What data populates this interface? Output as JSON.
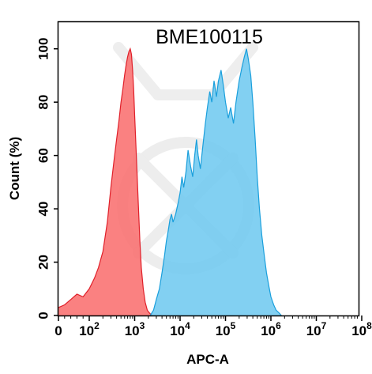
{
  "chart_data": {
    "type": "area",
    "title": "BME100115",
    "xlabel": "APC-A",
    "ylabel": "Count  (%)",
    "xscale": "log",
    "ylim": [
      0,
      110
    ],
    "y_ticks": [
      0,
      20,
      40,
      60,
      80,
      100
    ],
    "x_tick_labels": [
      {
        "value": 0,
        "base": "0",
        "exp": ""
      },
      {
        "value": 100,
        "base": "10",
        "exp": "2"
      },
      {
        "value": 1000,
        "base": "10",
        "exp": "3"
      },
      {
        "value": 10000,
        "base": "10",
        "exp": "4"
      },
      {
        "value": 100000,
        "base": "10",
        "exp": "5"
      },
      {
        "value": 1000000,
        "base": "10",
        "exp": "6"
      },
      {
        "value": 10000000,
        "base": "10",
        "exp": "7"
      },
      {
        "value": 100000000,
        "base": "10",
        "exp": "8"
      }
    ],
    "grid": false,
    "legend": "none",
    "series": [
      {
        "color": "#f96b6b",
        "stroke": "#e0202a",
        "points": [
          [
            0,
            3
          ],
          [
            20,
            4
          ],
          [
            40,
            6
          ],
          [
            60,
            8
          ],
          [
            80,
            7
          ],
          [
            100,
            10
          ],
          [
            130,
            14
          ],
          [
            160,
            18
          ],
          [
            200,
            24
          ],
          [
            250,
            35
          ],
          [
            300,
            48
          ],
          [
            350,
            58
          ],
          [
            400,
            66
          ],
          [
            450,
            73
          ],
          [
            500,
            80
          ],
          [
            550,
            85
          ],
          [
            600,
            90
          ],
          [
            650,
            94
          ],
          [
            700,
            97
          ],
          [
            750,
            99
          ],
          [
            800,
            100
          ],
          [
            850,
            98
          ],
          [
            900,
            92
          ],
          [
            950,
            85
          ],
          [
            1000,
            75
          ],
          [
            1100,
            58
          ],
          [
            1200,
            42
          ],
          [
            1300,
            28
          ],
          [
            1400,
            18
          ],
          [
            1550,
            10
          ],
          [
            1700,
            5
          ],
          [
            1900,
            2
          ],
          [
            2100,
            1
          ],
          [
            2400,
            0
          ]
        ]
      },
      {
        "color": "#6cc8f0",
        "stroke": "#1a9fdc",
        "points": [
          [
            2200,
            0
          ],
          [
            2600,
            2
          ],
          [
            3000,
            6
          ],
          [
            3500,
            10
          ],
          [
            4000,
            16
          ],
          [
            4500,
            22
          ],
          [
            5000,
            28
          ],
          [
            5500,
            32
          ],
          [
            6000,
            36
          ],
          [
            6500,
            38
          ],
          [
            7000,
            35
          ],
          [
            8000,
            38
          ],
          [
            9000,
            42
          ],
          [
            10000,
            46
          ],
          [
            11000,
            52
          ],
          [
            12000,
            48
          ],
          [
            13500,
            54
          ],
          [
            15000,
            62
          ],
          [
            17000,
            56
          ],
          [
            19000,
            52
          ],
          [
            21000,
            60
          ],
          [
            23000,
            66
          ],
          [
            25000,
            60
          ],
          [
            28000,
            55
          ],
          [
            32000,
            64
          ],
          [
            36000,
            72
          ],
          [
            40000,
            78
          ],
          [
            45000,
            84
          ],
          [
            50000,
            80
          ],
          [
            56000,
            88
          ],
          [
            63000,
            82
          ],
          [
            70000,
            88
          ],
          [
            80000,
            92
          ],
          [
            90000,
            86
          ],
          [
            100000,
            80
          ],
          [
            115000,
            74
          ],
          [
            130000,
            78
          ],
          [
            150000,
            72
          ],
          [
            170000,
            80
          ],
          [
            200000,
            88
          ],
          [
            230000,
            93
          ],
          [
            260000,
            97
          ],
          [
            290000,
            100
          ],
          [
            320000,
            96
          ],
          [
            360000,
            90
          ],
          [
            400000,
            80
          ],
          [
            450000,
            66
          ],
          [
            500000,
            52
          ],
          [
            560000,
            40
          ],
          [
            630000,
            30
          ],
          [
            720000,
            22
          ],
          [
            800000,
            16
          ],
          [
            900000,
            11
          ],
          [
            1000000,
            7
          ],
          [
            1150000,
            4
          ],
          [
            1300000,
            2
          ],
          [
            1500000,
            1
          ],
          [
            1700000,
            0
          ]
        ]
      }
    ]
  }
}
